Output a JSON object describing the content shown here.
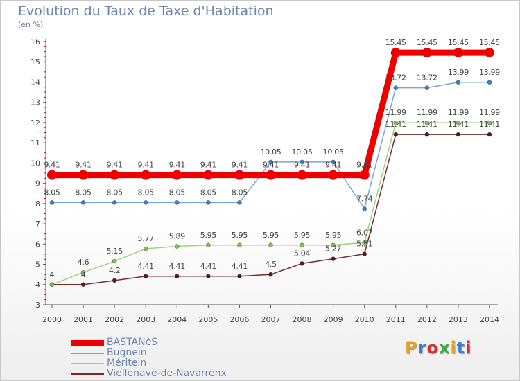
{
  "title": "Evolution du Taux de Taxe d'Habitation",
  "subtitle": "(en %)",
  "logo": {
    "text": "Proxiti",
    "colors": [
      "#e8a020",
      "#3a7fd0",
      "#d23030",
      "#45a845",
      "#e8a020",
      "#3a7fd0",
      "#d23030"
    ]
  },
  "chart_data": {
    "type": "line",
    "x": [
      2000,
      2001,
      2002,
      2003,
      2004,
      2005,
      2006,
      2007,
      2008,
      2009,
      2010,
      2011,
      2012,
      2013,
      2014
    ],
    "x_tick_labels": [
      "2000",
      "2001",
      "2002",
      "2003",
      "2004",
      "2005",
      "2006",
      "2007",
      "2008",
      "2009",
      "2010",
      "2011",
      "2012",
      "2013",
      "2014"
    ],
    "ylim": [
      3,
      16
    ],
    "y_tick_labels": [
      "3",
      "4",
      "5",
      "6",
      "7",
      "8",
      "9",
      "10",
      "11",
      "12",
      "13",
      "14",
      "15",
      "16"
    ],
    "grid": false,
    "legend_position": "bottom-left",
    "series": [
      {
        "name": "BASTANèS",
        "color": "#ee0000",
        "width": "thick",
        "values": [
          9.41,
          9.41,
          9.41,
          9.41,
          9.41,
          9.41,
          9.41,
          9.41,
          9.41,
          9.41,
          9.41,
          15.45,
          15.45,
          15.45,
          15.45
        ],
        "labels": [
          "9.41",
          "9.41",
          "9.41",
          "9.41",
          "9.41",
          "9.41",
          "9.41",
          "9.41",
          "9.41",
          "9.41",
          "9.41",
          "15.45",
          "15.45",
          "15.45",
          "15.45"
        ]
      },
      {
        "name": "Bugnein",
        "color": "#7aa6d6",
        "marker": "#3a80c8",
        "values": [
          8.05,
          8.05,
          8.05,
          8.05,
          8.05,
          8.05,
          8.05,
          10.05,
          10.05,
          10.05,
          7.74,
          13.72,
          13.72,
          13.99,
          13.99
        ],
        "labels": [
          "8.05",
          "8.05",
          "8.05",
          "8.05",
          "8.05",
          "8.05",
          "8.05",
          "10.05",
          "10.05",
          "10.05",
          "7.74",
          "13.72",
          "13.72",
          "13.99",
          "13.99"
        ]
      },
      {
        "name": "Méritein",
        "color": "#9ed27a",
        "marker": "#7cc44a",
        "values": [
          4,
          4.6,
          5.15,
          5.77,
          5.89,
          5.95,
          5.95,
          5.95,
          5.95,
          5.95,
          6.07,
          11.99,
          11.99,
          11.99,
          11.99
        ],
        "labels": [
          "4",
          "4.6",
          "5.15",
          "5.77",
          "5.89",
          "5.95",
          "5.95",
          "5.95",
          "5.95",
          "5.95",
          "6.07",
          "11.99",
          "11.99",
          "11.99",
          "11.99"
        ]
      },
      {
        "name": "Viellenave-de-Navarrenx",
        "color": "#7a2a2a",
        "marker": "#5a1a1a",
        "values": [
          4,
          4,
          4.2,
          4.41,
          4.41,
          4.41,
          4.41,
          4.5,
          5.04,
          5.27,
          5.51,
          11.41,
          11.41,
          11.41,
          11.41
        ],
        "labels": [
          "4",
          "4",
          "4.2",
          "4.41",
          "4.41",
          "4.41",
          "4.41",
          "4.5",
          "5.04",
          "5.27",
          "5.51",
          "11.41",
          "11.41",
          "11.41",
          "11.41"
        ]
      }
    ]
  }
}
